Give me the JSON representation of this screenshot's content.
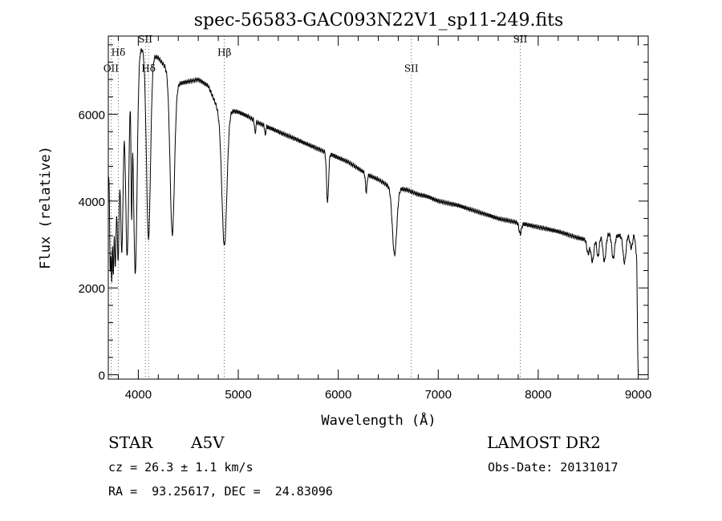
{
  "chart_data": {
    "type": "line",
    "title": "spec-56583-GAC093N22V1_sp11-249.fits",
    "xlabel": "Wavelength (Å)",
    "ylabel": "Flux (relative)",
    "xlim": [
      3700,
      9100
    ],
    "ylim": [
      -100,
      7800
    ],
    "xticks": [
      4000,
      5000,
      6000,
      7000,
      8000,
      9000
    ],
    "yticks": [
      0,
      2000,
      4000,
      6000
    ],
    "x_minor_step": 200,
    "y_minor_step": 400,
    "grid": false,
    "line_color": "#000000",
    "line_labels": [
      {
        "text": "OII",
        "x": 3727,
        "label_y": 6980
      },
      {
        "text": "Hδ",
        "x": 3800,
        "label_y": 7350
      },
      {
        "text": "SII",
        "x": 4070,
        "label_y": 7650
      },
      {
        "text": "Hδ",
        "x": 4102,
        "label_y": 6980
      },
      {
        "text": "Hβ",
        "x": 4861,
        "label_y": 7350
      },
      {
        "text": "SII",
        "x": 6731,
        "label_y": 6980
      },
      {
        "text": "SII",
        "x": 7820,
        "label_y": 7650
      }
    ],
    "series": [
      {
        "continuum": [
          [
            3700,
            4500
          ],
          [
            3750,
            5500
          ],
          [
            3820,
            6200
          ],
          [
            3900,
            7000
          ],
          [
            3950,
            7300
          ],
          [
            4000,
            7500
          ],
          [
            4050,
            7500
          ],
          [
            4100,
            7300
          ],
          [
            4150,
            7350
          ],
          [
            4200,
            7300
          ],
          [
            4300,
            7000
          ],
          [
            4400,
            6700
          ],
          [
            4500,
            6750
          ],
          [
            4600,
            6800
          ],
          [
            4700,
            6650
          ],
          [
            4800,
            6100
          ],
          [
            4850,
            6050
          ],
          [
            4900,
            6100
          ],
          [
            5000,
            6050
          ],
          [
            5100,
            5950
          ],
          [
            5200,
            5800
          ],
          [
            5300,
            5700
          ],
          [
            5400,
            5600
          ],
          [
            5500,
            5500
          ],
          [
            5600,
            5400
          ],
          [
            5700,
            5300
          ],
          [
            5800,
            5200
          ],
          [
            5900,
            5100
          ],
          [
            6000,
            5000
          ],
          [
            6100,
            4900
          ],
          [
            6200,
            4750
          ],
          [
            6300,
            4600
          ],
          [
            6400,
            4500
          ],
          [
            6500,
            4350
          ],
          [
            6600,
            4300
          ],
          [
            6700,
            4250
          ],
          [
            6800,
            4150
          ],
          [
            6900,
            4100
          ],
          [
            7000,
            4000
          ],
          [
            7200,
            3900
          ],
          [
            7400,
            3750
          ],
          [
            7600,
            3600
          ],
          [
            7800,
            3500
          ],
          [
            8000,
            3400
          ],
          [
            8200,
            3300
          ],
          [
            8400,
            3150
          ],
          [
            8500,
            3100
          ],
          [
            8600,
            3200
          ],
          [
            8700,
            3250
          ],
          [
            8800,
            3200
          ],
          [
            8900,
            3250
          ],
          [
            8960,
            3250
          ],
          [
            8985,
            2700
          ],
          [
            8995,
            600
          ],
          [
            9000,
            0
          ]
        ],
        "absorption_lines": [
          {
            "center": 3720,
            "width": 6,
            "depth": 0.5
          },
          {
            "center": 3734,
            "width": 6,
            "depth": 0.55
          },
          {
            "center": 3750,
            "width": 7,
            "depth": 0.55
          },
          {
            "center": 3770,
            "width": 9,
            "depth": 0.55
          },
          {
            "center": 3798,
            "width": 11,
            "depth": 0.55
          },
          {
            "center": 3835,
            "width": 13,
            "depth": 0.55
          },
          {
            "center": 3889,
            "width": 16,
            "depth": 0.6
          },
          {
            "center": 3933,
            "width": 6,
            "depth": 0.45
          },
          {
            "center": 3970,
            "width": 18,
            "depth": 0.68
          },
          {
            "center": 4102,
            "width": 20,
            "depth": 0.57
          },
          {
            "center": 4340,
            "width": 22,
            "depth": 0.53
          },
          {
            "center": 4861,
            "width": 25,
            "depth": 0.51
          },
          {
            "center": 5169,
            "width": 6,
            "depth": 0.05
          },
          {
            "center": 5270,
            "width": 5,
            "depth": 0.04
          },
          {
            "center": 5893,
            "width": 10,
            "depth": 0.22
          },
          {
            "center": 6280,
            "width": 8,
            "depth": 0.09
          },
          {
            "center": 6563,
            "width": 22,
            "depth": 0.36
          },
          {
            "center": 7820,
            "width": 12,
            "depth": 0.07
          },
          {
            "center": 8498,
            "width": 12,
            "depth": 0.1
          },
          {
            "center": 8542,
            "width": 15,
            "depth": 0.17
          },
          {
            "center": 8598,
            "width": 12,
            "depth": 0.15
          },
          {
            "center": 8662,
            "width": 15,
            "depth": 0.19
          },
          {
            "center": 8750,
            "width": 14,
            "depth": 0.17
          },
          {
            "center": 8863,
            "width": 15,
            "depth": 0.2
          },
          {
            "center": 8930,
            "width": 14,
            "depth": 0.1
          }
        ],
        "step": 2
      }
    ]
  },
  "info": {
    "object_class": "STAR",
    "subclass": "A5V",
    "survey": "LAMOST DR2",
    "cz": "cz = 26.3 ± 1.1 km/s",
    "obs_date": "Obs-Date: 20131017",
    "coords": "RA =  93.25617, DEC =  24.83096"
  }
}
